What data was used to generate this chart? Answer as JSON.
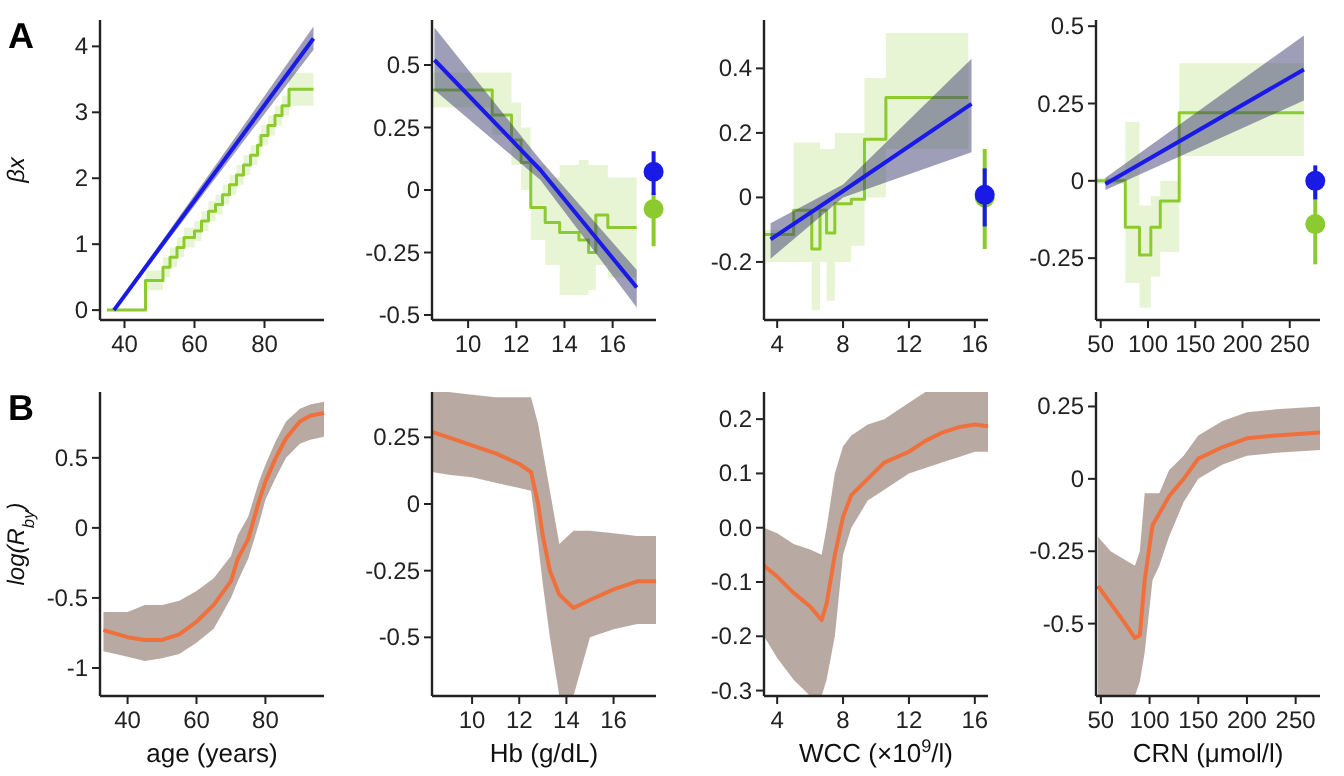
{
  "chart_data": [
    {
      "type": "line",
      "title": "A",
      "ylabel": "βx",
      "xlim": [
        33,
        97
      ],
      "xticks": [
        40,
        60,
        80
      ],
      "ylim": [
        -0.15,
        4.4
      ],
      "yticks": [
        0,
        1,
        2,
        3,
        4
      ],
      "series": [
        {
          "type": "step",
          "color": "#8ccb2f",
          "x": [
            35,
            46,
            51,
            53,
            55,
            57,
            60,
            62,
            64,
            66,
            68,
            70,
            72,
            74,
            76,
            78,
            79,
            81,
            83,
            85,
            87,
            94
          ],
          "values": [
            0,
            0.45,
            0.65,
            0.8,
            0.95,
            1.1,
            1.2,
            1.35,
            1.5,
            1.6,
            1.75,
            1.9,
            2.05,
            2.2,
            2.35,
            2.5,
            2.65,
            2.8,
            2.95,
            3.1,
            3.35,
            3.35
          ],
          "lower": [
            0,
            0.3,
            0.5,
            0.65,
            0.8,
            0.95,
            1.05,
            1.2,
            1.35,
            1.45,
            1.6,
            1.75,
            1.9,
            2.05,
            2.2,
            2.35,
            2.5,
            2.65,
            2.8,
            2.95,
            3.1,
            3.1
          ],
          "upper": [
            0,
            0.6,
            0.8,
            0.95,
            1.1,
            1.25,
            1.35,
            1.5,
            1.65,
            1.75,
            1.9,
            2.05,
            2.2,
            2.35,
            2.5,
            2.65,
            2.8,
            2.95,
            3.1,
            3.25,
            3.6,
            3.6
          ]
        },
        {
          "type": "line",
          "color": "#1a1ae6",
          "x": [
            37,
            94
          ],
          "values": [
            0,
            4.12
          ],
          "lower": [
            -0.02,
            3.95
          ],
          "upper": [
            0.02,
            4.3
          ]
        }
      ]
    },
    {
      "type": "line",
      "xlim": [
        8.5,
        17.8
      ],
      "xticks": [
        10,
        12,
        14,
        16
      ],
      "ylim": [
        -0.52,
        0.68
      ],
      "yticks": [
        0.5,
        0.25,
        0,
        -0.25,
        -0.5
      ],
      "series": [
        {
          "type": "step",
          "color": "#8ccb2f",
          "x": [
            8.5,
            11,
            11.8,
            12.2,
            12.6,
            13.2,
            13.8,
            14.6,
            15,
            15.3,
            15.8,
            17
          ],
          "values": [
            0.4,
            0.3,
            0.2,
            0.11,
            -0.07,
            -0.13,
            -0.17,
            -0.2,
            -0.25,
            -0.1,
            -0.15,
            -0.15
          ],
          "lower": [
            0.33,
            0.22,
            0.1,
            0,
            -0.2,
            -0.3,
            -0.42,
            -0.42,
            -0.4,
            -0.3,
            -0.35,
            -0.35
          ],
          "upper": [
            0.47,
            0.47,
            0.35,
            0.25,
            0.1,
            0.05,
            0.1,
            0.12,
            0.1,
            0.1,
            0.05,
            0.05
          ]
        },
        {
          "type": "line",
          "color": "#1a1ae6",
          "x": [
            8.6,
            13,
            17
          ],
          "values": [
            0.52,
            0.08,
            -0.39
          ],
          "lower": [
            0.4,
            0.04,
            -0.47
          ],
          "upper": [
            0.65,
            0.12,
            -0.32
          ]
        },
        {
          "type": "scatter",
          "color": "#8ccb2f",
          "x": [
            17.7
          ],
          "values": [
            -0.076
          ],
          "errors": [
            [
              -0.225,
              -0.01
            ]
          ]
        },
        {
          "type": "scatter",
          "color": "#1a1ae6",
          "x": [
            17.7
          ],
          "values": [
            0.073
          ],
          "errors": [
            [
              -0.02,
              0.155
            ]
          ]
        }
      ]
    },
    {
      "type": "line",
      "xlim": [
        3.2,
        16.8
      ],
      "xticks": [
        4,
        8,
        12,
        16
      ],
      "ylim": [
        -0.38,
        0.55
      ],
      "yticks": [
        0.4,
        0.2,
        0,
        -0.2
      ],
      "series": [
        {
          "type": "step",
          "color": "#8ccb2f",
          "x": [
            3.2,
            5,
            6.1,
            6.6,
            7,
            7.5,
            8.5,
            9.3,
            10.6,
            15.6
          ],
          "values": [
            -0.115,
            -0.04,
            -0.16,
            -0.04,
            -0.11,
            -0.02,
            -0.006,
            0.18,
            0.31,
            0.31
          ],
          "lower": [
            -0.2,
            -0.2,
            -0.35,
            -0.2,
            -0.32,
            -0.2,
            -0.15,
            0,
            0.15,
            0.15
          ],
          "upper": [
            -0.1,
            0.17,
            0.17,
            0.15,
            0.15,
            0.2,
            0.2,
            0.37,
            0.51,
            0.51
          ]
        },
        {
          "type": "line",
          "color": "#1a1ae6",
          "x": [
            3.6,
            8,
            15.8
          ],
          "values": [
            -0.13,
            0.02,
            0.29
          ],
          "lower": [
            -0.19,
            0,
            0.14
          ],
          "upper": [
            -0.08,
            0.04,
            0.43
          ]
        },
        {
          "type": "scatter",
          "color": "#8ccb2f",
          "x": [
            16.6
          ],
          "values": [
            0
          ],
          "errors": [
            [
              -0.16,
              0.15
            ]
          ]
        },
        {
          "type": "scatter",
          "color": "#1a1ae6",
          "x": [
            16.6
          ],
          "values": [
            0.008
          ],
          "errors": [
            [
              -0.09,
              0.09
            ]
          ]
        }
      ]
    },
    {
      "type": "line",
      "xlim": [
        45,
        282
      ],
      "xticks": [
        50,
        100,
        150,
        200,
        250
      ],
      "ylim": [
        -0.45,
        0.52
      ],
      "yticks": [
        0.5,
        0.25,
        0,
        -0.25
      ],
      "series": [
        {
          "type": "step",
          "color": "#8ccb2f",
          "x": [
            45,
            76,
            91,
            103,
            113,
            133,
            265
          ],
          "values": [
            0,
            -0.15,
            -0.24,
            -0.15,
            -0.065,
            0.22,
            0.22
          ],
          "lower": [
            -0.01,
            -0.33,
            -0.41,
            -0.31,
            -0.23,
            0.08,
            0.08
          ],
          "upper": [
            0.01,
            0.19,
            -0.08,
            -0.05,
            0,
            0.38,
            0.38
          ]
        },
        {
          "type": "line",
          "color": "#1a1ae6",
          "x": [
            55,
            265
          ],
          "values": [
            -0.01,
            0.36
          ],
          "lower": [
            -0.03,
            0.26
          ],
          "upper": [
            0.01,
            0.47
          ]
        },
        {
          "type": "scatter",
          "color": "#8ccb2f",
          "x": [
            277
          ],
          "values": [
            -0.14
          ],
          "errors": [
            [
              -0.27,
              -0.03
            ]
          ]
        },
        {
          "type": "scatter",
          "color": "#1a1ae6",
          "x": [
            277
          ],
          "values": [
            0
          ],
          "errors": [
            [
              -0.06,
              0.05
            ]
          ]
        }
      ]
    },
    {
      "type": "line",
      "title": "B",
      "xlabel": "age (years)",
      "ylabel": "log(R$_{by}$)",
      "xlim": [
        32,
        97
      ],
      "xticks": [
        40,
        60,
        80
      ],
      "ylim": [
        -1.2,
        0.97
      ],
      "yticks": [
        0.5,
        0,
        -0.5,
        -1
      ],
      "series": [
        {
          "type": "line",
          "color": "#f0703c",
          "x": [
            33,
            40,
            45,
            50,
            55,
            60,
            65,
            70,
            72,
            75,
            78,
            80,
            83,
            86,
            90,
            93,
            97
          ],
          "values": [
            -0.73,
            -0.78,
            -0.8,
            -0.8,
            -0.76,
            -0.67,
            -0.55,
            -0.38,
            -0.22,
            -0.08,
            0.18,
            0.33,
            0.5,
            0.64,
            0.76,
            0.8,
            0.82
          ],
          "lower": [
            -0.88,
            -0.92,
            -0.95,
            -0.93,
            -0.9,
            -0.82,
            -0.72,
            -0.5,
            -0.38,
            -0.22,
            0.02,
            0.2,
            0.36,
            0.5,
            0.6,
            0.63,
            0.65
          ],
          "upper": [
            -0.6,
            -0.6,
            -0.55,
            -0.55,
            -0.52,
            -0.45,
            -0.36,
            -0.2,
            -0.05,
            0.08,
            0.32,
            0.45,
            0.62,
            0.76,
            0.85,
            0.88,
            0.9
          ]
        }
      ]
    },
    {
      "type": "line",
      "xlabel": "Hb (g/dL)",
      "xlim": [
        8.3,
        17.8
      ],
      "xticks": [
        10,
        12,
        14,
        16
      ],
      "ylim": [
        -0.72,
        0.42
      ],
      "yticks": [
        0.25,
        0,
        -0.25,
        -0.5
      ],
      "series": [
        {
          "type": "line",
          "color": "#f0703c",
          "x": [
            8.3,
            9,
            10,
            11,
            12,
            12.5,
            12.8,
            13,
            13.3,
            13.7,
            14.3,
            15,
            16,
            17,
            17.8
          ],
          "values": [
            0.27,
            0.25,
            0.22,
            0.19,
            0.15,
            0.12,
            0,
            -0.12,
            -0.25,
            -0.34,
            -0.39,
            -0.36,
            -0.32,
            -0.29,
            -0.29
          ],
          "lower": [
            0.12,
            0.11,
            0.1,
            0.08,
            0.06,
            0.05,
            -0.15,
            -0.3,
            -0.5,
            -0.72,
            -0.72,
            -0.5,
            -0.47,
            -0.45,
            -0.45
          ],
          "upper": [
            0.42,
            0.42,
            0.41,
            0.4,
            0.4,
            0.4,
            0.3,
            0.2,
            0.05,
            -0.15,
            -0.1,
            -0.1,
            -0.11,
            -0.12,
            -0.12
          ]
        }
      ]
    },
    {
      "type": "line",
      "xlabel": "WCC (×10$^{9}$/l)",
      "xlim": [
        3.2,
        16.8
      ],
      "xticks": [
        4,
        8,
        12,
        16
      ],
      "ylim": [
        -0.31,
        0.25
      ],
      "yticks": [
        0.2,
        0.1,
        {
          "value": 0,
          "label": "0.0"
        },
        -0.1,
        -0.2,
        -0.3
      ],
      "series": [
        {
          "type": "line",
          "color": "#f0703c",
          "x": [
            3.2,
            4,
            5,
            6,
            6.7,
            7,
            7.5,
            8,
            8.5,
            9.5,
            10.5,
            12,
            13,
            14,
            15,
            16,
            16.8
          ],
          "values": [
            -0.07,
            -0.09,
            -0.12,
            -0.145,
            -0.17,
            -0.14,
            -0.05,
            0.02,
            0.06,
            0.09,
            0.12,
            0.14,
            0.16,
            0.175,
            0.185,
            0.19,
            0.187
          ],
          "lower": [
            -0.2,
            -0.24,
            -0.28,
            -0.31,
            -0.31,
            -0.28,
            -0.2,
            -0.05,
            0,
            0.05,
            0.07,
            0.1,
            0.11,
            0.12,
            0.13,
            0.14,
            0.14
          ],
          "upper": [
            0,
            -0.01,
            -0.03,
            -0.04,
            -0.05,
            0,
            0.1,
            0.15,
            0.17,
            0.19,
            0.2,
            0.23,
            0.25,
            0.25,
            0.25,
            0.25,
            0.25
          ]
        }
      ]
    },
    {
      "type": "line",
      "xlabel": "CRN (μmol/l)",
      "xlim": [
        45,
        275
      ],
      "xticks": [
        50,
        100,
        150,
        200,
        250
      ],
      "ylim": [
        -0.75,
        0.3
      ],
      "yticks": [
        0.25,
        0,
        -0.25,
        -0.5
      ],
      "series": [
        {
          "type": "line",
          "color": "#f0703c",
          "x": [
            47,
            60,
            75,
            85,
            90,
            95,
            103,
            110,
            120,
            135,
            150,
            175,
            200,
            230,
            275
          ],
          "values": [
            -0.37,
            -0.43,
            -0.5,
            -0.55,
            -0.54,
            -0.35,
            -0.16,
            -0.12,
            -0.06,
            0,
            0.07,
            0.11,
            0.14,
            0.15,
            0.16
          ],
          "lower": [
            -0.75,
            -0.75,
            -0.75,
            -0.75,
            -0.7,
            -0.6,
            -0.35,
            -0.3,
            -0.2,
            -0.08,
            0,
            0.05,
            0.08,
            0.09,
            0.1
          ],
          "upper": [
            -0.2,
            -0.25,
            -0.28,
            -0.3,
            -0.25,
            -0.05,
            -0.05,
            -0.05,
            0.03,
            0.08,
            0.15,
            0.2,
            0.23,
            0.24,
            0.25
          ]
        }
      ]
    }
  ]
}
